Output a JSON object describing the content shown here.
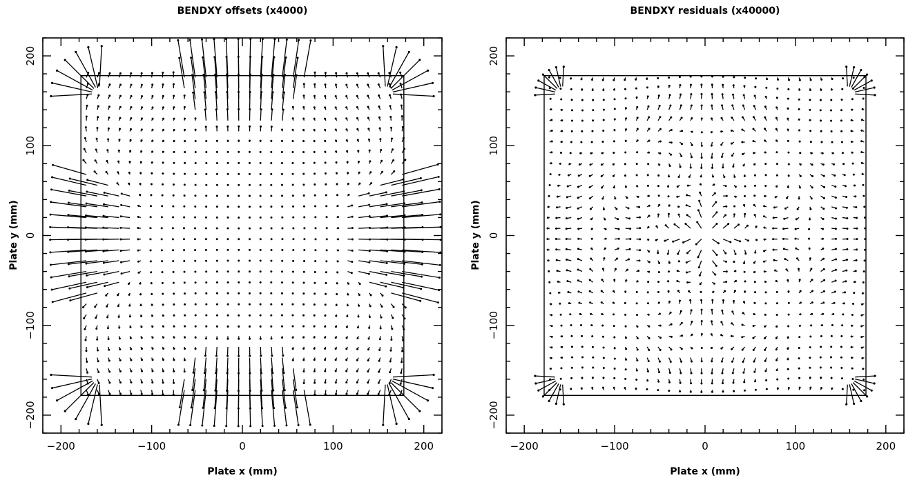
{
  "chart_data": [
    {
      "type": "quiver",
      "title": "BENDXY offsets (x4000)",
      "xlabel": "Plate x (mm)",
      "ylabel": "Plate y (mm)",
      "xlim": [
        -220,
        220
      ],
      "ylim": [
        -220,
        220
      ],
      "xticks": [
        -200,
        -100,
        0,
        100,
        200
      ],
      "yticks": [
        -200,
        -100,
        0,
        100,
        200
      ],
      "xtick_labels": [
        "−200",
        "−100",
        "0",
        "100",
        "200"
      ],
      "ytick_labels": [
        "−200",
        "−100",
        "0",
        "100",
        "200"
      ],
      "plate_square_half_width": 178,
      "grid_spacing": 12,
      "scale_factor": 4000,
      "field": "offsets"
    },
    {
      "type": "quiver",
      "title": "BENDXY residuals (x40000)",
      "xlabel": "Plate x (mm)",
      "ylabel": "Plate y (mm)",
      "xlim": [
        -220,
        220
      ],
      "ylim": [
        -220,
        220
      ],
      "xticks": [
        -200,
        -100,
        0,
        100,
        200
      ],
      "yticks": [
        -200,
        -100,
        0,
        100,
        200
      ],
      "xtick_labels": [
        "−200",
        "−100",
        "0",
        "100",
        "200"
      ],
      "ytick_labels": [
        "−200",
        "−100",
        "0",
        "100",
        "200"
      ],
      "plate_square_half_width": 178,
      "grid_spacing": 12,
      "scale_factor": 40000,
      "field": "residuals"
    }
  ]
}
